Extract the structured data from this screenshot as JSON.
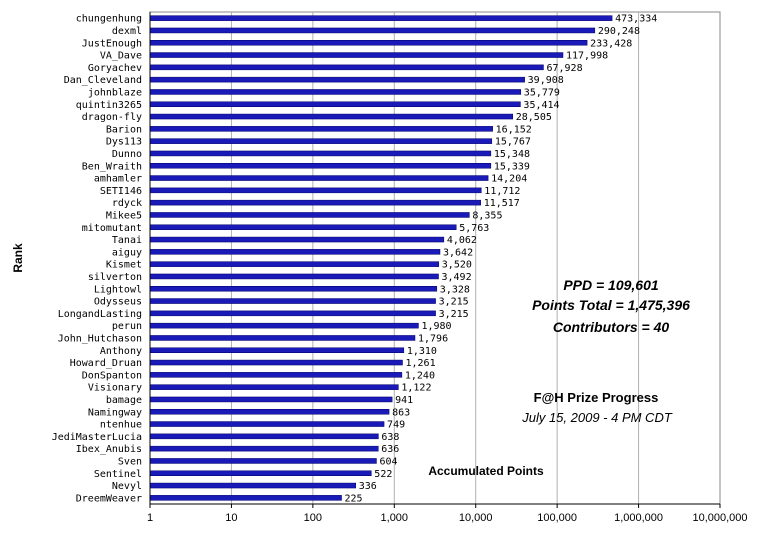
{
  "chart_data": {
    "type": "bar",
    "orientation": "horizontal",
    "x_scale": "log",
    "xlim": [
      1,
      10000000
    ],
    "xlabel": "Accumulated Points",
    "ylabel": "Rank",
    "bar_color": "#1a1ab8",
    "grid": "vertical major gridlines at each decade",
    "x_ticks": [
      "1",
      "10",
      "100",
      "1,000",
      "10,000",
      "100,000",
      "1,000,000",
      "10,000,000"
    ],
    "categories": [
      "chungenhung",
      "dexml",
      "JustEnough",
      "VA_Dave",
      "Goryachev",
      "Dan_Cleveland",
      "johnblaze",
      "quintin3265",
      "dragon-fly",
      "Barion",
      "Dys113",
      "Dunno",
      "Ben_Wraith",
      "amhamler",
      "SETI146",
      "rdyck",
      "Mikee5",
      "mitomutant",
      "Tanai",
      "aiguy",
      "Kismet",
      "silverton",
      "Lightowl",
      "Odysseus",
      "LongandLasting",
      "perun",
      "John_Hutchason",
      "Anthony",
      "Howard_Druan",
      "DonSpanton",
      "Visionary",
      "bamage",
      "Namingway",
      "ntenhue",
      "JediMasterLucia",
      "Ibex_Anubis",
      "Sven",
      "Sentinel",
      "Nevyl",
      "DreemWeaver"
    ],
    "values": [
      473334,
      290248,
      233428,
      117998,
      67928,
      39908,
      35779,
      35414,
      28505,
      16152,
      15767,
      15348,
      15339,
      14204,
      11712,
      11517,
      8355,
      5763,
      4062,
      3642,
      3520,
      3492,
      3328,
      3215,
      3215,
      1980,
      1796,
      1310,
      1261,
      1240,
      1122,
      941,
      863,
      749,
      638,
      636,
      604,
      522,
      336,
      225
    ],
    "value_labels": [
      "473,334",
      "290,248",
      "233,428",
      "117,998",
      "67,928",
      "39,908",
      "35,779",
      "35,414",
      "28,505",
      "16,152",
      "15,767",
      "15,348",
      "15,339",
      "14,204",
      "11,712",
      "11,517",
      "8,355",
      "5,763",
      "4,062",
      "3,642",
      "3,520",
      "3,492",
      "3,328",
      "3,215",
      "3,215",
      "1,980",
      "1,796",
      "1,310",
      "1,261",
      "1,240",
      "1,122",
      "941",
      "863",
      "749",
      "638",
      "636",
      "604",
      "522",
      "336",
      "225"
    ],
    "annotations": {
      "ppd": "PPD = 109,601",
      "points_total": "Points Total = 1,475,396",
      "contributors": "Contributors = 40",
      "progress_title": "F@H Prize Progress",
      "progress_date": "July 15, 2009 - 4 PM CDT"
    }
  }
}
